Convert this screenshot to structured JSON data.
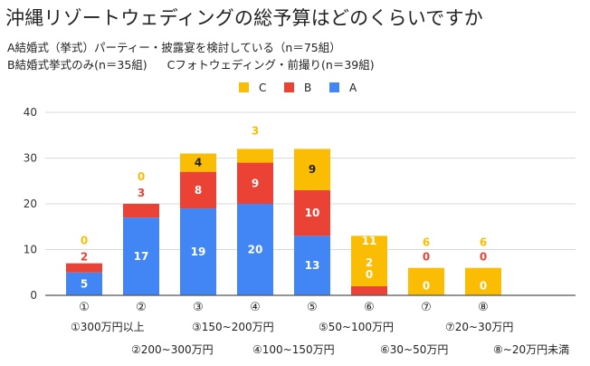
{
  "title": "沖縄リゾートウェディングの総予算はどのくらいですか",
  "subtitle_1": "A結婚式（挙式）パーティー・披露宴を検討している（n＝75組）",
  "subtitle_2a": "B結婚式挙式のみ(n＝35組)",
  "subtitle_2b": "Cフォトウェディング・前撮り(n＝39組)",
  "colors": {
    "A": "#4285f4",
    "B": "#ea4335",
    "C": "#fbbc04",
    "axis": "#555555",
    "grid": "#d9d9d9"
  },
  "chart_data": {
    "type": "bar",
    "stacked": true,
    "title": "沖縄リゾートウェディングの総予算はどのくらいですか",
    "categories": [
      "①",
      "②",
      "③",
      "④",
      "⑤",
      "⑥",
      "⑦",
      "⑧"
    ],
    "category_legend": [
      "①300万円以上",
      "②200~300万円",
      "③150~200万円",
      "④100~150万円",
      "⑤50~100万円",
      "⑥30~50万円",
      "⑦20~30万円",
      "⑧~20万円未満"
    ],
    "series": [
      {
        "name": "A",
        "values": [
          5,
          17,
          19,
          20,
          13,
          0,
          0,
          0
        ],
        "labels": [
          "5",
          "17",
          "19",
          "20",
          "13",
          "0",
          "",
          ""
        ]
      },
      {
        "name": "B",
        "values": [
          2,
          3,
          8,
          9,
          10,
          2,
          0,
          0
        ],
        "labels": [
          "2",
          "3",
          "8",
          "9",
          "10",
          "2",
          "0",
          "0"
        ]
      },
      {
        "name": "C",
        "values": [
          0,
          0,
          4,
          3,
          9,
          11,
          6,
          6
        ],
        "labels": [
          "0",
          "0",
          "4",
          "3",
          "9",
          "11",
          "6",
          "6"
        ]
      }
    ],
    "legend": [
      "C",
      "B",
      "A"
    ],
    "legend_position": "top",
    "yticks": [
      "0",
      "10",
      "20",
      "30",
      "40"
    ],
    "ylim": [
      0,
      40
    ],
    "xlabel": "",
    "ylabel": ""
  }
}
